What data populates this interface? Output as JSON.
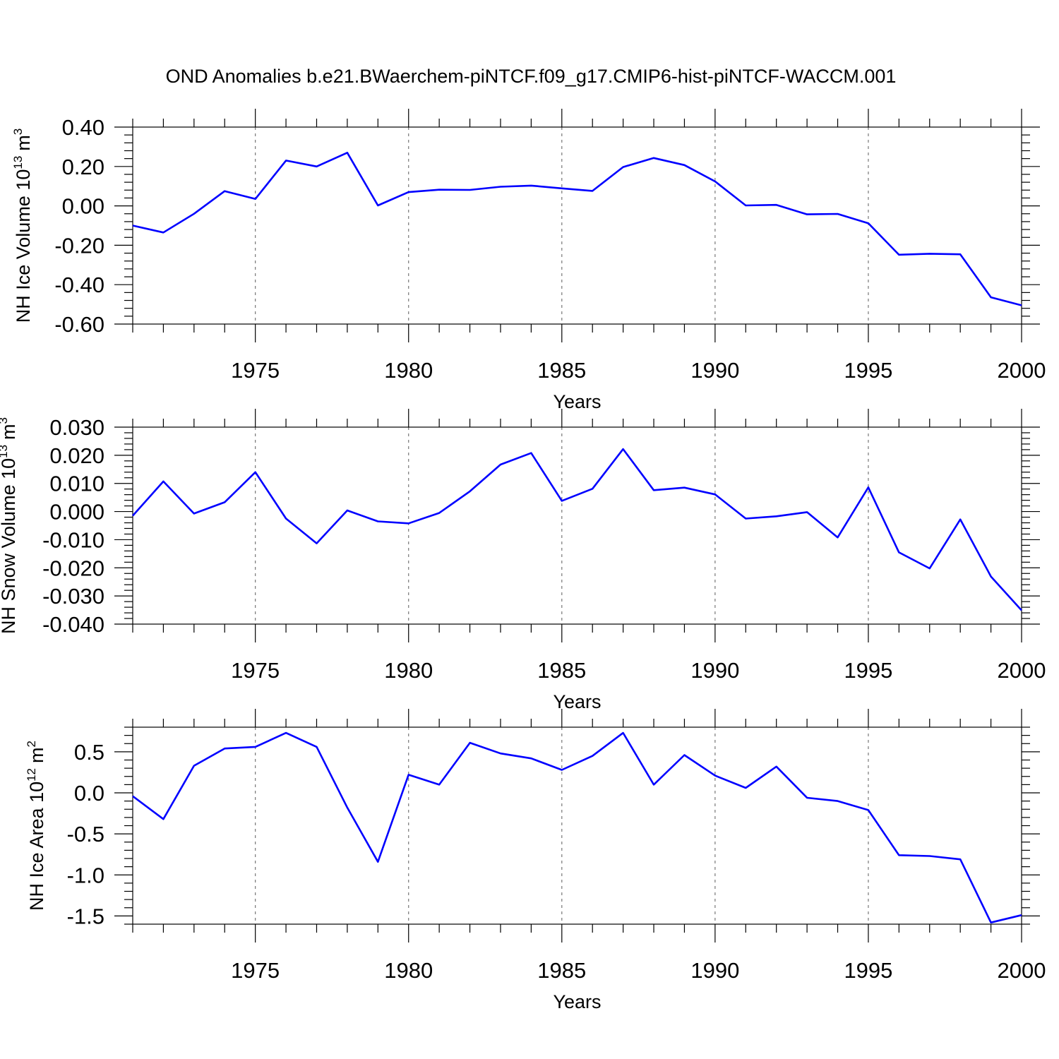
{
  "title": "OND Anomalies b.e21.BWaerchem-piNTCF.f09_g17.CMIP6-hist-piNTCF-WACCM.001",
  "chart_data": [
    {
      "type": "line",
      "ylabel": "NH Ice Volume 10",
      "ylabel_sup": "13",
      "ylabel_unit": "m",
      "ylabel_unit_sup": "3",
      "xlabel": "Years",
      "xlim": [
        1971,
        2000
      ],
      "ylim": [
        -0.6,
        0.4
      ],
      "xticks": [
        "1975",
        "1980",
        "1985",
        "1990",
        "1995",
        "2000"
      ],
      "yticks": [
        "0.40",
        "0.20",
        "0.00",
        "-0.20",
        "-0.40",
        "-0.60"
      ],
      "x": [
        1971,
        1972,
        1973,
        1974,
        1975,
        1976,
        1977,
        1978,
        1979,
        1980,
        1981,
        1982,
        1983,
        1984,
        1985,
        1986,
        1987,
        1988,
        1989,
        1990,
        1991,
        1992,
        1993,
        1994,
        1995,
        1996,
        1997,
        1998,
        1999,
        2000
      ],
      "series": [
        {
          "name": "NH Ice Volume",
          "color": "#0000ff",
          "values": [
            -0.1,
            -0.135,
            -0.04,
            0.075,
            0.035,
            0.23,
            0.2,
            0.27,
            0.002,
            0.07,
            0.082,
            0.081,
            0.097,
            0.103,
            0.089,
            0.076,
            0.197,
            0.243,
            0.207,
            0.124,
            0.002,
            0.005,
            -0.043,
            -0.041,
            -0.088,
            -0.248,
            -0.243,
            -0.246,
            -0.464,
            -0.505
          ]
        }
      ]
    },
    {
      "type": "line",
      "ylabel": "NH Snow Volume 10",
      "ylabel_sup": "13",
      "ylabel_unit": "m",
      "ylabel_unit_sup": "3",
      "xlabel": "Years",
      "xlim": [
        1971,
        2000
      ],
      "ylim": [
        -0.04,
        0.03
      ],
      "xticks": [
        "1975",
        "1980",
        "1985",
        "1990",
        "1995",
        "2000"
      ],
      "yticks": [
        "0.030",
        "0.020",
        "0.010",
        "0.000",
        "-0.010",
        "-0.020",
        "-0.030",
        "-0.040"
      ],
      "x": [
        1971,
        1972,
        1973,
        1974,
        1975,
        1976,
        1977,
        1978,
        1979,
        1980,
        1981,
        1982,
        1983,
        1984,
        1985,
        1986,
        1987,
        1988,
        1989,
        1990,
        1991,
        1992,
        1993,
        1994,
        1995,
        1996,
        1997,
        1998,
        1999,
        2000
      ],
      "series": [
        {
          "name": "NH Snow Volume",
          "color": "#0000ff",
          "values": [
            -0.0015,
            0.0107,
            -0.0007,
            0.0033,
            0.014,
            -0.0025,
            -0.0113,
            0.0004,
            -0.0035,
            -0.0042,
            -0.0005,
            0.0072,
            0.0167,
            0.0208,
            0.0038,
            0.0081,
            0.0222,
            0.0076,
            0.0085,
            0.0061,
            -0.0025,
            -0.0017,
            -0.0002,
            -0.0092,
            0.0086,
            -0.0145,
            -0.0202,
            -0.0028,
            -0.0231,
            -0.0351
          ]
        }
      ]
    },
    {
      "type": "line",
      "ylabel": "NH Ice Area 10",
      "ylabel_sup": "12",
      "ylabel_unit": "m",
      "ylabel_unit_sup": "2",
      "xlabel": "Years",
      "xlim": [
        1971,
        2000
      ],
      "ylim": [
        -1.6,
        0.8
      ],
      "xticks": [
        "1975",
        "1980",
        "1985",
        "1990",
        "1995",
        "2000"
      ],
      "yticks": [
        "0.5",
        "0.0",
        "-0.5",
        "-1.0",
        "-1.5"
      ],
      "x": [
        1971,
        1972,
        1973,
        1974,
        1975,
        1976,
        1977,
        1978,
        1979,
        1980,
        1981,
        1982,
        1983,
        1984,
        1985,
        1986,
        1987,
        1988,
        1989,
        1990,
        1991,
        1992,
        1993,
        1994,
        1995,
        1996,
        1997,
        1998,
        1999,
        2000
      ],
      "series": [
        {
          "name": "NH Ice Area",
          "color": "#0000ff",
          "values": [
            -0.04,
            -0.32,
            0.33,
            0.54,
            0.56,
            0.73,
            0.56,
            -0.18,
            -0.84,
            0.22,
            0.1,
            0.61,
            0.48,
            0.42,
            0.28,
            0.45,
            0.73,
            0.1,
            0.46,
            0.21,
            0.06,
            0.32,
            -0.06,
            -0.1,
            -0.21,
            -0.76,
            -0.77,
            -0.81,
            -1.58,
            -1.49
          ]
        }
      ]
    }
  ]
}
